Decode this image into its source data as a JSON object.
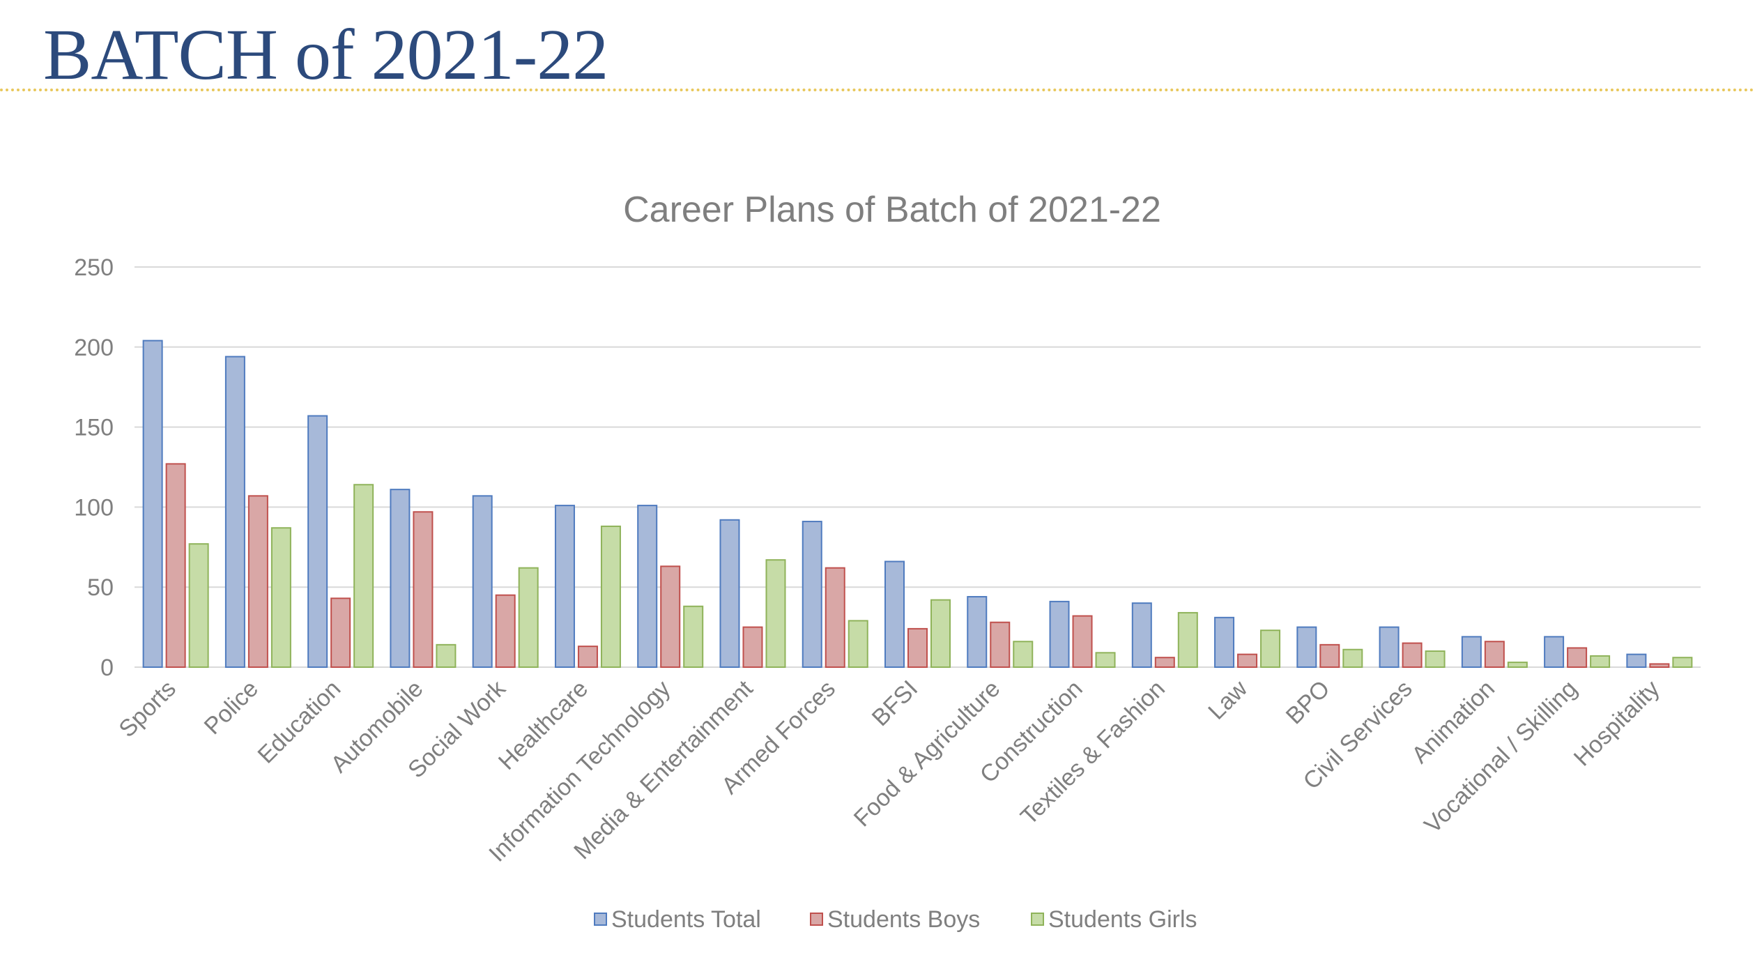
{
  "page": {
    "title": "BATCH of 2021-22"
  },
  "colors": {
    "title": "#2c4a7c",
    "rule": "#e8c75a",
    "chart_text": "#7f7f7f",
    "grid": "#d9d9d9"
  },
  "chart_data": {
    "type": "bar",
    "title": "Career Plans of Batch of 2021-22",
    "xlabel": "",
    "ylabel": "",
    "ylim": [
      0,
      250
    ],
    "yticks": [
      0,
      50,
      100,
      150,
      200,
      250
    ],
    "grid": true,
    "legend_position": "bottom",
    "categories": [
      "Sports",
      "Police",
      "Education",
      "Automobile",
      "Social Work",
      "Healthcare",
      "Information Technology",
      "Media & Entertainment",
      "Armed Forces",
      "BFSI",
      "Food & Agriculture",
      "Construction",
      "Textiles & Fashion",
      "Law",
      "BPO",
      "Civil Services",
      "Animation",
      "Vocational / Skilling",
      "Hospitality"
    ],
    "series": [
      {
        "name": "Students Total",
        "fill": "#a7b9d9",
        "stroke": "#4f7bbf",
        "values": [
          204,
          194,
          157,
          111,
          107,
          101,
          101,
          92,
          91,
          66,
          44,
          41,
          40,
          31,
          25,
          25,
          19,
          19,
          8
        ]
      },
      {
        "name": "Students Boys",
        "fill": "#d9a7a6",
        "stroke": "#c0504d",
        "values": [
          127,
          107,
          43,
          97,
          45,
          13,
          63,
          25,
          62,
          24,
          28,
          32,
          6,
          8,
          14,
          15,
          16,
          12,
          2
        ]
      },
      {
        "name": "Students Girls",
        "fill": "#c6dca7",
        "stroke": "#8fb35a",
        "values": [
          77,
          87,
          114,
          14,
          62,
          88,
          38,
          67,
          29,
          42,
          16,
          9,
          34,
          23,
          11,
          10,
          3,
          7,
          6
        ]
      }
    ]
  }
}
